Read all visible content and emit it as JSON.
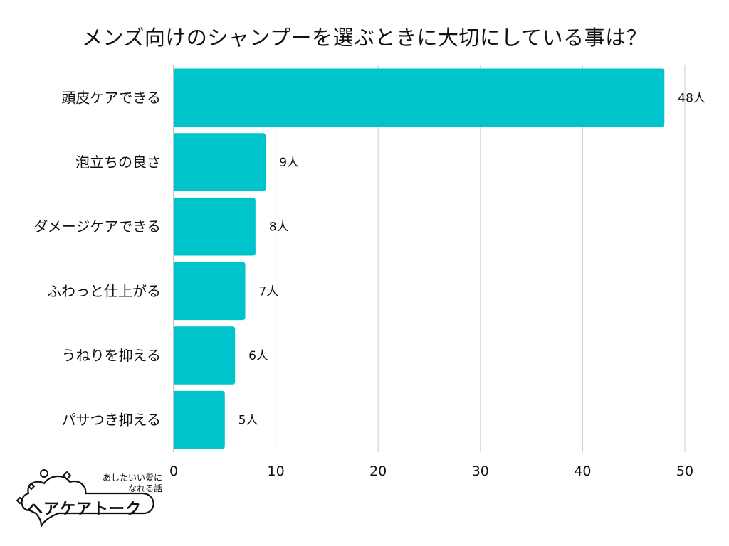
{
  "page": {
    "title": "メンズ向けのシャンプーを選ぶときに大切にしている事は？"
  },
  "chart_data": {
    "type": "bar",
    "orientation": "horizontal",
    "title": "メンズ向けのシャンプーを選ぶときに大切にしている事は？",
    "categories": [
      "頭皮ケアできる",
      "泡立ちの良さ",
      "ダメージケアできる",
      "ふわっと仕上がる",
      "うねりを抑える",
      "パサつき抑える"
    ],
    "values": [
      48,
      9,
      8,
      7,
      6,
      5
    ],
    "data_labels": [
      "48人",
      "9人",
      "8人",
      "7人",
      "6人",
      "5人"
    ],
    "xlim": [
      0,
      50
    ],
    "xticks": [
      0,
      10,
      20,
      30,
      40,
      50
    ],
    "xtick_labels": [
      "0",
      "10",
      "20",
      "30",
      "40",
      "50"
    ],
    "grid": true,
    "bar_color": "#00c4cb",
    "grid_color": "#cccccc",
    "xlabel": "",
    "ylabel": ""
  },
  "logo": {
    "tagline_line1": "あしたいい髪に",
    "tagline_line2": "なれる話",
    "brand": "ヘアケアトーク"
  }
}
